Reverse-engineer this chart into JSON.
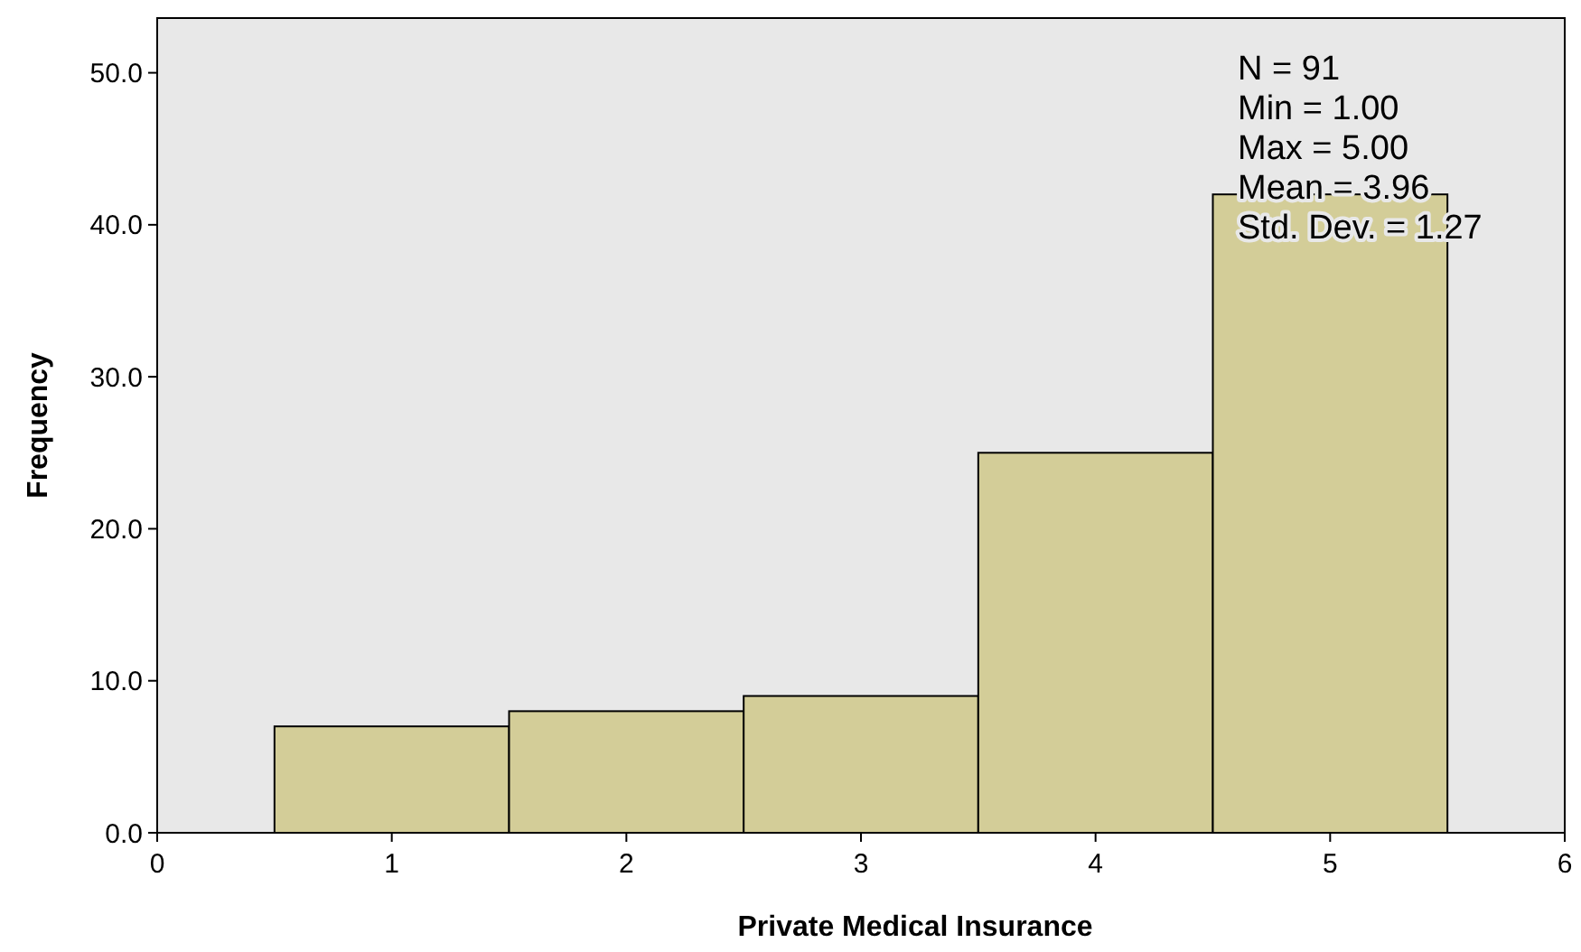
{
  "chart_data": {
    "type": "histogram",
    "xlabel": "Private Medical Insurance",
    "ylabel": "Frequency",
    "bins": [
      0.5,
      1.5,
      2.5,
      3.5,
      4.5,
      5.5
    ],
    "values": [
      7,
      8,
      9,
      25,
      42
    ],
    "color": "#d3cd98",
    "xlim": [
      0,
      6
    ],
    "xticks": [
      0,
      1,
      2,
      3,
      4,
      5,
      6
    ],
    "ylim": [
      0,
      53.6
    ],
    "yticks": [
      {
        "value": 0,
        "label": "0.0"
      },
      {
        "value": 10,
        "label": "10.0"
      },
      {
        "value": 20,
        "label": "20.0"
      },
      {
        "value": 30,
        "label": "30.0"
      },
      {
        "value": 40,
        "label": "40.0"
      },
      {
        "value": 50,
        "label": "50.0"
      }
    ],
    "annotations": [
      "N = 91",
      "Min = 1.00",
      "Max = 5.00",
      "Mean = 3.96",
      "Std. Dev. = 1.27"
    ]
  }
}
